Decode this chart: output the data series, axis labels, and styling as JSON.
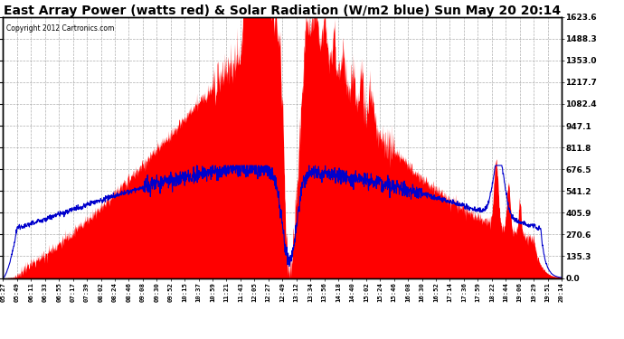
{
  "title": "East Array Power (watts red) & Solar Radiation (W/m2 blue) Sun May 20 20:14",
  "copyright": "Copyright 2012 Cartronics.com",
  "ylabel_right_ticks": [
    0.0,
    135.3,
    270.6,
    405.9,
    541.2,
    676.5,
    811.8,
    947.1,
    1082.4,
    1217.7,
    1353.0,
    1488.3,
    1623.6
  ],
  "ymax": 1623.6,
  "ymin": 0.0,
  "background_color": "#ffffff",
  "fill_color": "#ff0000",
  "line_color": "#0000cc",
  "grid_color": "#999999",
  "title_fontsize": 10,
  "copyright_fontsize": 6,
  "x_times": [
    "05:27",
    "05:49",
    "06:11",
    "06:33",
    "06:55",
    "07:17",
    "07:39",
    "08:02",
    "08:24",
    "08:46",
    "09:08",
    "09:30",
    "09:52",
    "10:15",
    "10:37",
    "10:59",
    "11:21",
    "11:43",
    "12:05",
    "12:27",
    "12:49",
    "13:12",
    "13:34",
    "13:56",
    "14:18",
    "14:40",
    "15:02",
    "15:24",
    "15:46",
    "16:08",
    "16:30",
    "16:52",
    "17:14",
    "17:36",
    "17:59",
    "18:22",
    "18:44",
    "19:06",
    "19:29",
    "19:51",
    "20:14"
  ]
}
